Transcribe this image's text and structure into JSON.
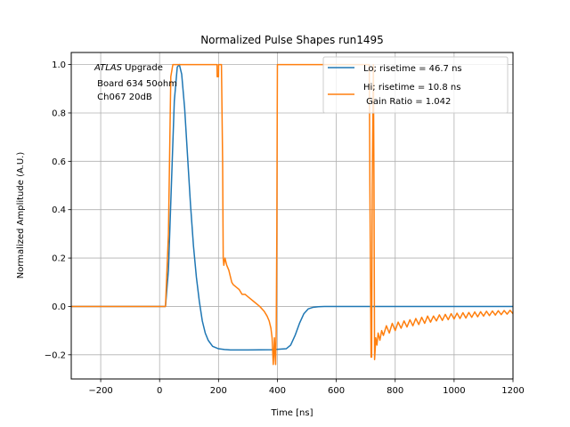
{
  "chart_data": {
    "type": "line",
    "title": "Normalized Pulse Shapes run1495",
    "xlabel": "Time [ns]",
    "ylabel": "Normalized Amplitude (A.U.)",
    "xlim": [
      -300,
      1200
    ],
    "ylim": [
      -0.3,
      1.05
    ],
    "xticks": [
      -200,
      0,
      200,
      400,
      600,
      800,
      1000,
      1200
    ],
    "xtick_labels": [
      "−200",
      "0",
      "200",
      "400",
      "600",
      "800",
      "1000",
      "1200"
    ],
    "yticks": [
      -0.2,
      0.0,
      0.2,
      0.4,
      0.6,
      0.8,
      1.0
    ],
    "ytick_labels": [
      "−0.2",
      "0.0",
      "0.2",
      "0.4",
      "0.6",
      "0.8",
      "1.0"
    ],
    "grid": true,
    "legend_position": "top-right",
    "annotation": {
      "italic": "ATLAS",
      "line1_rest": " Upgrade",
      "line2": " Board 634 50ohm",
      "line3": " Ch067 20dB"
    },
    "series": [
      {
        "name": "Lo",
        "legend_label": "Lo; risetime = 46.7 ns",
        "color": "#1f77b4",
        "x": [
          -300,
          0,
          20,
          30,
          40,
          50,
          60,
          67,
          75,
          85,
          95,
          105,
          115,
          125,
          135,
          145,
          155,
          165,
          180,
          200,
          220,
          240,
          300,
          380,
          430,
          445,
          460,
          475,
          490,
          505,
          520,
          540,
          560,
          600,
          800,
          1000,
          1200
        ],
        "y": [
          0.0,
          0.0,
          0.0,
          0.15,
          0.5,
          0.85,
          0.99,
          1.0,
          0.96,
          0.82,
          0.62,
          0.42,
          0.25,
          0.12,
          0.02,
          -0.06,
          -0.11,
          -0.14,
          -0.165,
          -0.175,
          -0.178,
          -0.18,
          -0.18,
          -0.179,
          -0.175,
          -0.16,
          -0.12,
          -0.07,
          -0.03,
          -0.01,
          -0.004,
          -0.001,
          0.0,
          0.0,
          0.0,
          0.0,
          0.0
        ]
      },
      {
        "name": "Hi",
        "legend_label": "Hi; risetime = 10.8 ns",
        "legend_label_2": " Gain Ratio = 1.042",
        "color": "#ff7f0e",
        "x": [
          -300,
          0,
          20,
          30,
          38,
          45,
          100,
          190,
          195,
          195.5,
          200,
          200.5,
          210,
          214,
          216,
          218,
          222,
          228,
          235,
          245,
          250,
          260,
          270,
          280,
          290,
          300,
          320,
          340,
          355,
          365,
          372,
          378,
          382,
          386,
          390,
          392,
          394,
          396,
          398,
          400,
          402,
          500,
          600,
          700,
          712,
          714,
          718,
          720,
          722,
          726,
          728,
          730,
          732,
          734,
          738,
          742,
          748,
          754,
          760,
          770,
          780,
          790,
          800,
          810,
          820,
          830,
          840,
          850,
          860,
          870,
          880,
          890,
          900,
          910,
          920,
          930,
          940,
          950,
          960,
          970,
          980,
          990,
          1000,
          1010,
          1020,
          1030,
          1040,
          1050,
          1060,
          1070,
          1080,
          1090,
          1100,
          1110,
          1120,
          1130,
          1140,
          1150,
          1160,
          1170,
          1180,
          1190,
          1200
        ],
        "y": [
          0.0,
          0.0,
          0.0,
          0.3,
          0.95,
          1.0,
          1.0,
          1.0,
          1.0,
          0.95,
          0.95,
          1.0,
          1.0,
          0.6,
          0.2,
          0.17,
          0.2,
          0.17,
          0.15,
          0.1,
          0.09,
          0.08,
          0.07,
          0.05,
          0.05,
          0.04,
          0.02,
          0.0,
          -0.02,
          -0.04,
          -0.06,
          -0.09,
          -0.13,
          -0.24,
          -0.13,
          -0.2,
          -0.24,
          -0.1,
          0.3,
          1.0,
          1.0,
          1.0,
          1.0,
          1.0,
          1.0,
          0.5,
          -0.21,
          -0.21,
          0.5,
          1.0,
          0.5,
          -0.22,
          -0.18,
          -0.13,
          -0.16,
          -0.11,
          -0.14,
          -0.1,
          -0.12,
          -0.08,
          -0.11,
          -0.07,
          -0.1,
          -0.065,
          -0.09,
          -0.06,
          -0.085,
          -0.055,
          -0.08,
          -0.05,
          -0.075,
          -0.045,
          -0.07,
          -0.04,
          -0.065,
          -0.04,
          -0.06,
          -0.035,
          -0.058,
          -0.033,
          -0.055,
          -0.03,
          -0.052,
          -0.028,
          -0.05,
          -0.026,
          -0.048,
          -0.025,
          -0.045,
          -0.023,
          -0.043,
          -0.022,
          -0.04,
          -0.02,
          -0.038,
          -0.019,
          -0.036,
          -0.018,
          -0.034,
          -0.017,
          -0.032,
          -0.016,
          -0.03
        ]
      }
    ]
  }
}
